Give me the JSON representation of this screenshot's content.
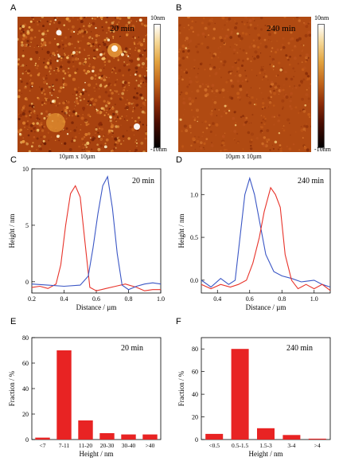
{
  "panel_letters": [
    "A",
    "B",
    "C",
    "D",
    "E",
    "F"
  ],
  "afm": {
    "A": {
      "time": "20 min",
      "scale_top": "10nm",
      "scale_bottom": "-10nm",
      "caption": "10µm x 10µm"
    },
    "B": {
      "time": "240 min",
      "scale_top": "10nm",
      "scale_bottom": "-10nm",
      "caption": "10µm x 10µm"
    }
  },
  "colors": {
    "red": "#e8332a",
    "blue": "#3a56c5",
    "bar": "#e82323",
    "afm_base": "#a8400f"
  },
  "chart_data": [
    {
      "id": "C",
      "type": "line",
      "annotation": "20 min",
      "xlabel": "Distance / µm",
      "ylabel": "Height / nm",
      "xlim": [
        0.2,
        1.0
      ],
      "ylim": [
        -1,
        10
      ],
      "xticks": [
        0.2,
        0.4,
        0.6,
        0.8,
        1.0
      ],
      "xticklabels": [
        "0.2",
        "0.4",
        "0.6",
        "0.8",
        "1.0"
      ],
      "yticks": [
        0,
        5,
        10
      ],
      "yticklabels": [
        "0",
        "5",
        "10"
      ],
      "series": [
        {
          "color": "red",
          "x": [
            0.2,
            0.25,
            0.3,
            0.35,
            0.38,
            0.41,
            0.44,
            0.47,
            0.5,
            0.53,
            0.56,
            0.6,
            0.66,
            0.72,
            0.78,
            0.85,
            0.9,
            0.95,
            1.0
          ],
          "y": [
            -0.5,
            -0.4,
            -0.6,
            -0.2,
            1.5,
            5.0,
            7.8,
            8.5,
            7.5,
            3.5,
            -0.5,
            -0.8,
            -0.6,
            -0.4,
            -0.2,
            -0.5,
            -0.8,
            -0.7,
            -0.7
          ]
        },
        {
          "color": "blue",
          "x": [
            0.2,
            0.3,
            0.4,
            0.5,
            0.55,
            0.58,
            0.61,
            0.64,
            0.67,
            0.7,
            0.73,
            0.76,
            0.8,
            0.85,
            0.9,
            0.95,
            1.0
          ],
          "y": [
            -0.2,
            -0.3,
            -0.4,
            -0.3,
            0.5,
            3.0,
            6.0,
            8.5,
            9.3,
            6.5,
            2.5,
            -0.3,
            -0.7,
            -0.4,
            -0.2,
            -0.1,
            -0.2
          ]
        }
      ]
    },
    {
      "id": "D",
      "type": "line",
      "annotation": "240 min",
      "xlabel": "Distance / µm",
      "ylabel": "Height / nm",
      "xlim": [
        0.3,
        1.1
      ],
      "ylim": [
        -0.15,
        1.3
      ],
      "xticks": [
        0.4,
        0.6,
        0.8,
        1.0
      ],
      "xticklabels": [
        "0.4",
        "0.6",
        "0.8",
        "1.0"
      ],
      "yticks": [
        0,
        0.5,
        1.0
      ],
      "yticklabels": [
        "0.0",
        "0.5",
        "1.0"
      ],
      "series": [
        {
          "color": "blue",
          "x": [
            0.3,
            0.36,
            0.42,
            0.47,
            0.51,
            0.54,
            0.57,
            0.6,
            0.63,
            0.66,
            0.7,
            0.75,
            0.8,
            0.86,
            0.92,
            1.0,
            1.05,
            1.1
          ],
          "y": [
            0.0,
            -0.08,
            0.02,
            -0.05,
            0.0,
            0.5,
            1.0,
            1.19,
            1.0,
            0.7,
            0.3,
            0.1,
            0.05,
            0.02,
            -0.02,
            0.0,
            -0.05,
            -0.08
          ]
        },
        {
          "color": "red",
          "x": [
            0.3,
            0.36,
            0.42,
            0.48,
            0.53,
            0.58,
            0.62,
            0.66,
            0.69,
            0.73,
            0.76,
            0.79,
            0.82,
            0.86,
            0.9,
            0.95,
            1.0,
            1.05,
            1.1
          ],
          "y": [
            -0.05,
            -0.1,
            -0.05,
            -0.08,
            -0.05,
            0.0,
            0.2,
            0.5,
            0.8,
            1.08,
            1.0,
            0.85,
            0.3,
            0.0,
            -0.1,
            -0.05,
            -0.1,
            -0.05,
            -0.12
          ]
        }
      ]
    },
    {
      "id": "E",
      "type": "bar",
      "annotation": "20 min",
      "xlabel": "Height / nm",
      "ylabel": "Fraction / %",
      "ylim": [
        0,
        80
      ],
      "yticks": [
        0,
        20,
        40,
        60,
        80
      ],
      "yticklabels": [
        "0",
        "20",
        "40",
        "60",
        "80"
      ],
      "categories": [
        "<7",
        "7-11",
        "11-20",
        "20-30",
        "30-40",
        ">40"
      ],
      "values": [
        1.5,
        70,
        15,
        5,
        4,
        4
      ]
    },
    {
      "id": "F",
      "type": "bar",
      "annotation": "240 min",
      "xlabel": "Height / nm",
      "ylabel": "Fraction / %",
      "ylim": [
        0,
        90
      ],
      "yticks": [
        0,
        20,
        40,
        60,
        80
      ],
      "yticklabels": [
        "0",
        "20",
        "40",
        "60",
        "80"
      ],
      "categories": [
        "<0.5",
        "0.5-1.5",
        "1.5-3",
        "3-4",
        ">4"
      ],
      "values": [
        5,
        80,
        10,
        4,
        0.8
      ]
    }
  ]
}
